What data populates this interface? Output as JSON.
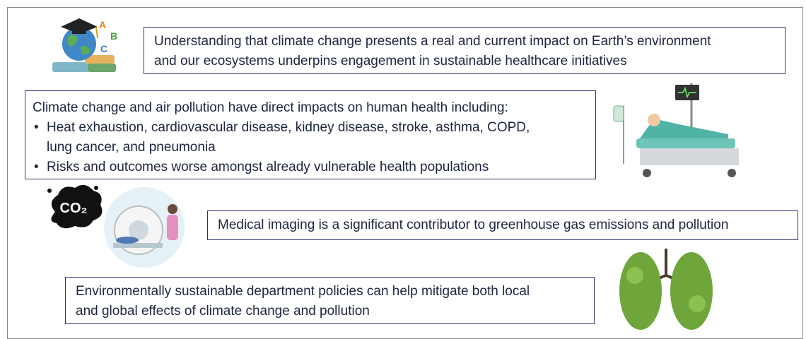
{
  "boxes": [
    {
      "lines": [
        "Understanding that climate change presents a real and current impact on Earth’s environment",
        "and our ecosystems underpins engagement in sustainable healthcare initiatives"
      ]
    },
    {
      "heading": "Climate change and air pollution have direct impacts on human health including:",
      "bullets": [
        {
          "lines": [
            "Heat exhaustion, cardiovascular disease, kidney disease, stroke, asthma, COPD,",
            "lung cancer, and pneumonia"
          ]
        },
        {
          "lines": [
            "Risks and outcomes worse amongst already vulnerable health populations"
          ]
        }
      ]
    },
    {
      "lines": [
        "Medical imaging is a significant contributor to greenhouse gas emissions and pollution"
      ]
    },
    {
      "lines": [
        "Environmentally sustainable department policies can help mitigate both local",
        "and global effects of climate change and pollution"
      ]
    }
  ],
  "icons": {
    "globe_letters": [
      "A",
      "B",
      "C"
    ],
    "co2": "CO₂"
  }
}
